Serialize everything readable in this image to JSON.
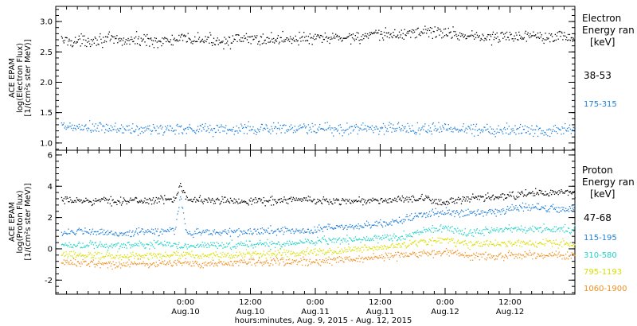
{
  "colors": {
    "black": "#000000",
    "blue": "#1f7fd8",
    "cyan": "#22d3c4",
    "yellow": "#d8e000",
    "orange": "#f09020"
  },
  "chart_data": [
    {
      "type": "scatter",
      "ylabel_lines": [
        "ACE  EPAM",
        "log(Electron Flux)",
        "[1/(cm²s ster MeV)]"
      ],
      "legend_title": [
        "Electron",
        "Energy ran",
        "[keV]"
      ],
      "ylim": [
        0.88,
        3.25
      ],
      "yticks": [
        1.0,
        1.5,
        2.0,
        2.5,
        3.0
      ],
      "yticklabels": [
        "1.0",
        "1.5",
        "2.0",
        "2.5",
        "3.0"
      ],
      "xlim": [
        -24,
        72
      ],
      "series": [
        {
          "name": "38-53",
          "color_key": "black",
          "x": [
            -23,
            -20,
            -16,
            -12,
            -8,
            -4,
            0,
            4,
            8,
            12,
            16,
            20,
            24,
            28,
            32,
            36,
            40,
            44,
            48,
            52,
            56,
            60,
            64,
            68,
            72
          ],
          "y": [
            2.7,
            2.68,
            2.72,
            2.69,
            2.71,
            2.68,
            2.72,
            2.7,
            2.69,
            2.72,
            2.71,
            2.73,
            2.72,
            2.74,
            2.76,
            2.78,
            2.8,
            2.85,
            2.82,
            2.78,
            2.74,
            2.76,
            2.79,
            2.77,
            2.75
          ]
        },
        {
          "name": "175-315",
          "color_key": "blue",
          "x": [
            -23,
            -20,
            -16,
            -12,
            -8,
            -4,
            0,
            4,
            8,
            12,
            16,
            20,
            24,
            28,
            32,
            36,
            40,
            44,
            48,
            52,
            56,
            60,
            64,
            68,
            72
          ],
          "y": [
            1.27,
            1.26,
            1.25,
            1.24,
            1.22,
            1.24,
            1.25,
            1.24,
            1.23,
            1.24,
            1.25,
            1.24,
            1.24,
            1.22,
            1.26,
            1.25,
            1.25,
            1.24,
            1.25,
            1.24,
            1.23,
            1.23,
            1.22,
            1.23,
            1.22
          ]
        }
      ]
    },
    {
      "type": "scatter",
      "ylabel_lines": [
        "ACE  EPAM",
        "log(Proton Flux)",
        "[1/(cm²s ster MeV)]"
      ],
      "legend_title": [
        "Proton",
        "Energy ran",
        "[keV]"
      ],
      "ylim": [
        -2.9,
        6.3
      ],
      "yticks": [
        -2,
        0,
        2,
        4,
        6
      ],
      "yticklabels": [
        "-2",
        "0",
        "2",
        "4",
        "6"
      ],
      "xlim": [
        -24,
        72
      ],
      "xticklabels": [
        {
          "x": 0,
          "time": "0:00",
          "date": "Aug.10"
        },
        {
          "x": 12,
          "time": "12:00",
          "date": "Aug.10"
        },
        {
          "x": 24,
          "time": "0:00",
          "date": "Aug.11"
        },
        {
          "x": 36,
          "time": "12:00",
          "date": "Aug.11"
        },
        {
          "x": 48,
          "time": "0:00",
          "date": "Aug.12"
        },
        {
          "x": 60,
          "time": "12:00",
          "date": "Aug.12"
        }
      ],
      "xlabel": "hours:minutes, Aug.  9, 2015 - Aug. 12, 2015",
      "series": [
        {
          "name": "47-68",
          "color_key": "black",
          "x": [
            -23,
            -18,
            -12,
            -8,
            -2,
            -1,
            0,
            1,
            4,
            8,
            12,
            16,
            20,
            24,
            28,
            32,
            36,
            40,
            44,
            48,
            52,
            56,
            60,
            64,
            68,
            72
          ],
          "y": [
            3.1,
            3.1,
            3.1,
            3.1,
            3.2,
            4.3,
            3.3,
            3.2,
            3.1,
            3.1,
            3.1,
            3.1,
            3.2,
            3.1,
            3.1,
            3.1,
            3.1,
            3.2,
            3.2,
            3.0,
            3.2,
            3.3,
            3.4,
            3.6,
            3.6,
            3.6
          ]
        },
        {
          "name": "115-195",
          "color_key": "blue",
          "x": [
            -23,
            -18,
            -12,
            -8,
            -2,
            -1,
            0,
            1,
            4,
            8,
            12,
            16,
            20,
            24,
            26,
            28,
            32,
            36,
            40,
            44,
            48,
            52,
            56,
            60,
            64,
            68,
            72
          ],
          "y": [
            1.1,
            1.1,
            1.0,
            1.1,
            1.2,
            3.5,
            1.2,
            1.0,
            1.1,
            1.1,
            1.1,
            1.2,
            1.2,
            1.2,
            1.4,
            1.4,
            1.5,
            1.6,
            1.9,
            2.2,
            2.4,
            2.3,
            2.4,
            2.6,
            2.7,
            2.6,
            2.6
          ]
        },
        {
          "name": "310-580",
          "color_key": "cyan",
          "x": [
            -23,
            -18,
            -12,
            -8,
            -4,
            0,
            4,
            8,
            12,
            16,
            20,
            24,
            28,
            32,
            36,
            40,
            44,
            48,
            52,
            56,
            60,
            64,
            68,
            72
          ],
          "y": [
            0.3,
            0.3,
            0.2,
            0.3,
            0.3,
            0.2,
            0.3,
            0.3,
            0.3,
            0.3,
            0.3,
            0.5,
            0.6,
            0.6,
            0.7,
            0.8,
            1.2,
            1.4,
            1.0,
            1.2,
            1.3,
            1.3,
            1.3,
            1.3
          ]
        },
        {
          "name": "795-1193",
          "color_key": "yellow",
          "x": [
            -23,
            -18,
            -12,
            -8,
            -4,
            0,
            4,
            8,
            12,
            16,
            20,
            24,
            28,
            32,
            36,
            40,
            44,
            48,
            52,
            56,
            60,
            64,
            68,
            72
          ],
          "y": [
            -0.4,
            -0.4,
            -0.4,
            -0.4,
            -0.4,
            -0.4,
            -0.4,
            -0.4,
            -0.3,
            -0.3,
            -0.3,
            -0.2,
            -0.1,
            0.0,
            0.1,
            0.3,
            0.5,
            0.6,
            0.3,
            0.3,
            0.4,
            0.4,
            0.4,
            0.3
          ]
        },
        {
          "name": "1060-1900",
          "color_key": "orange",
          "x": [
            -23,
            -18,
            -12,
            -8,
            -4,
            0,
            4,
            8,
            12,
            16,
            20,
            24,
            28,
            32,
            36,
            40,
            44,
            48,
            52,
            56,
            60,
            64,
            68,
            72
          ],
          "y": [
            -0.9,
            -0.9,
            -1.0,
            -0.9,
            -0.9,
            -0.9,
            -0.9,
            -0.9,
            -0.8,
            -0.8,
            -0.8,
            -0.8,
            -0.7,
            -0.6,
            -0.5,
            -0.4,
            -0.3,
            -0.2,
            -0.4,
            -0.5,
            -0.4,
            -0.4,
            -0.4,
            -0.4
          ]
        }
      ]
    }
  ]
}
